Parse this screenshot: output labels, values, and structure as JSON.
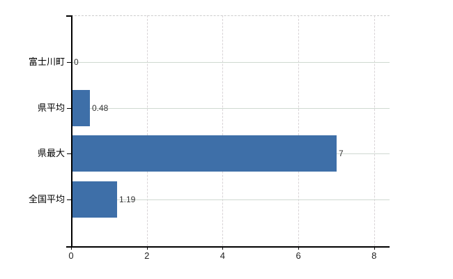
{
  "chart_data": {
    "type": "bar",
    "orientation": "horizontal",
    "title": "",
    "xlabel": "",
    "ylabel": "",
    "categories": [
      "富士川町",
      "県平均",
      "県最大",
      "全国平均"
    ],
    "values": [
      0,
      0.48,
      7,
      1.19
    ],
    "value_labels": [
      "0",
      "0.48",
      "7",
      "1.19"
    ],
    "x_ticks": [
      0,
      2,
      4,
      6,
      8
    ],
    "x_tick_labels": [
      "0",
      "2",
      "4",
      "6",
      "8"
    ],
    "xlim": [
      0,
      8.4
    ],
    "grid": true,
    "legend": "none",
    "colors": {
      "bar": "#3e6fa8",
      "h_grid": "#cfd9d1",
      "v_grid": "#d8d3d6",
      "top_border": "#cccccc",
      "axis": "#000000",
      "value_text": "#333333",
      "label_text": "#000000"
    }
  }
}
